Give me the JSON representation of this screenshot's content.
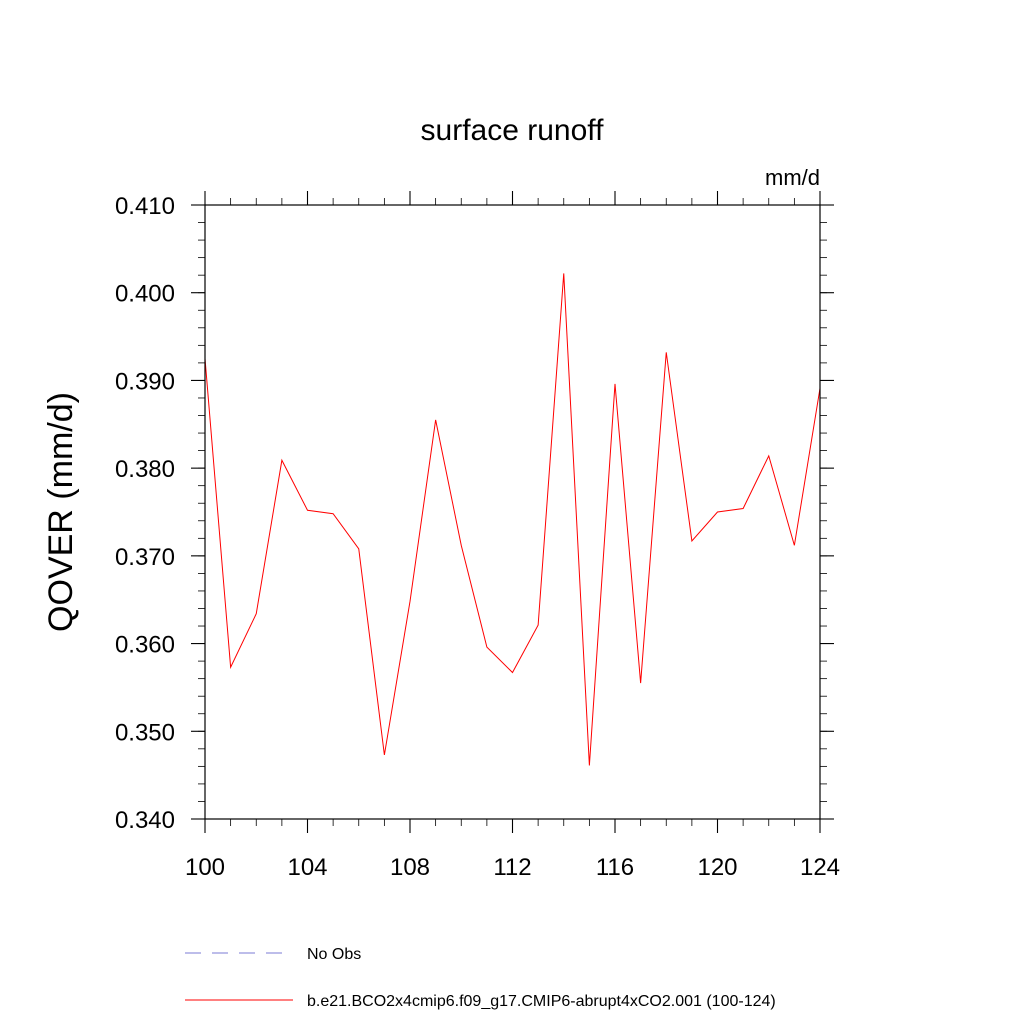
{
  "chart_data": {
    "type": "line",
    "title": "surface runoff",
    "units_label": "mm/d",
    "ylabel": "QOVER  (mm/d)",
    "xlabel": "",
    "xlim": [
      100,
      124
    ],
    "ylim": [
      0.34,
      0.41
    ],
    "x_ticks": [
      "100",
      "104",
      "108",
      "112",
      "116",
      "120",
      "124"
    ],
    "y_ticks": [
      "0.340",
      "0.350",
      "0.360",
      "0.370",
      "0.380",
      "0.390",
      "0.400",
      "0.410"
    ],
    "x": [
      100,
      101,
      102,
      103,
      104,
      105,
      106,
      107,
      108,
      109,
      110,
      111,
      112,
      113,
      114,
      115,
      116,
      117,
      118,
      119,
      120,
      121,
      122,
      123,
      124
    ],
    "series": [
      {
        "name": "b.e21.BCO2x4cmip6.f09_g17.CMIP6-abrupt4xCO2.001 (100-124)",
        "color": "#ff0000",
        "values": [
          0.3925,
          0.3573,
          0.3634,
          0.3809,
          0.3752,
          0.3748,
          0.3708,
          0.3473,
          0.3648,
          0.3855,
          0.3712,
          0.3596,
          0.3567,
          0.3621,
          0.4022,
          0.3461,
          0.3896,
          0.3555,
          0.3932,
          0.3717,
          0.375,
          0.3754,
          0.3814,
          0.3712,
          0.3891
        ]
      }
    ],
    "legend": [
      {
        "label": "No Obs",
        "color": "#7b7bd6",
        "style": "dashed"
      },
      {
        "label": "b.e21.BCO2x4cmip6.f09_g17.CMIP6-abrupt4xCO2.001 (100-124)",
        "color": "#ff0000",
        "style": "solid"
      }
    ],
    "legend_position": "bottom",
    "grid": false
  }
}
